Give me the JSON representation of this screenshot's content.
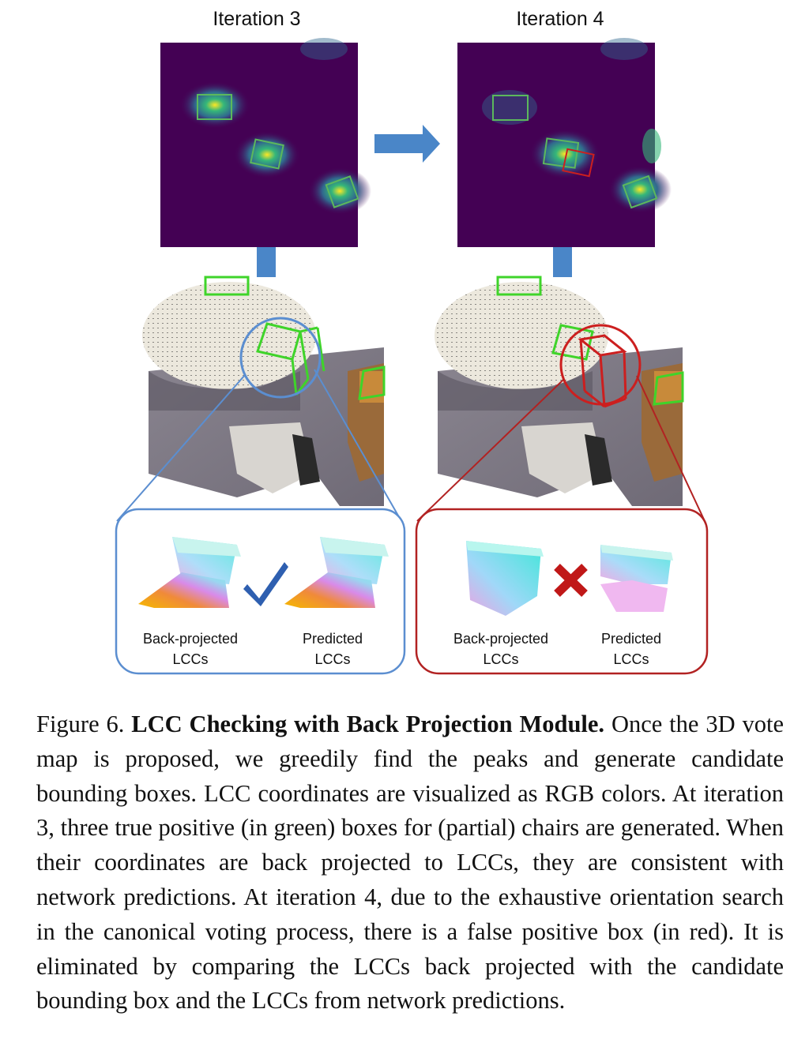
{
  "figure": {
    "left_panel": {
      "title": "Iteration 3",
      "back_label_line1": "Back-projected",
      "back_label_line2": "LCCs",
      "pred_label_line1": "Predicted",
      "pred_label_line2": "LCCs"
    },
    "right_panel": {
      "title": "Iteration 4",
      "back_label_line1": "Back-projected",
      "back_label_line2": "LCCs",
      "pred_label_line1": "Predicted",
      "pred_label_line2": "LCCs"
    },
    "colors": {
      "vote_map_bg": "#440154",
      "true_positive": "#5cb85c",
      "false_positive": "#cc1f1f",
      "arrow": "#4a86c8",
      "check": "#2e5fb0",
      "cross": "#c01818",
      "left_callout": "#5b8ed0",
      "right_callout": "#b22222"
    }
  },
  "caption": {
    "prefix": "Figure 6.",
    "title": "LCC Checking with Back Projection Module.",
    "body": "Once the 3D vote map is proposed, we greedily find the peaks and generate candidate bounding boxes. LCC coordinates are visualized as RGB colors. At iteration 3, three true positive (in green) boxes for (partial) chairs are generated. When their coordinates are back projected to LCCs, they are consistent with network predictions. At iteration 4, due to the exhaustive orientation search in the canonical voting process, there is a false positive box (in red). It is eliminated by comparing the LCCs back projected with the candidate bounding box and the LCCs from network predictions."
  }
}
